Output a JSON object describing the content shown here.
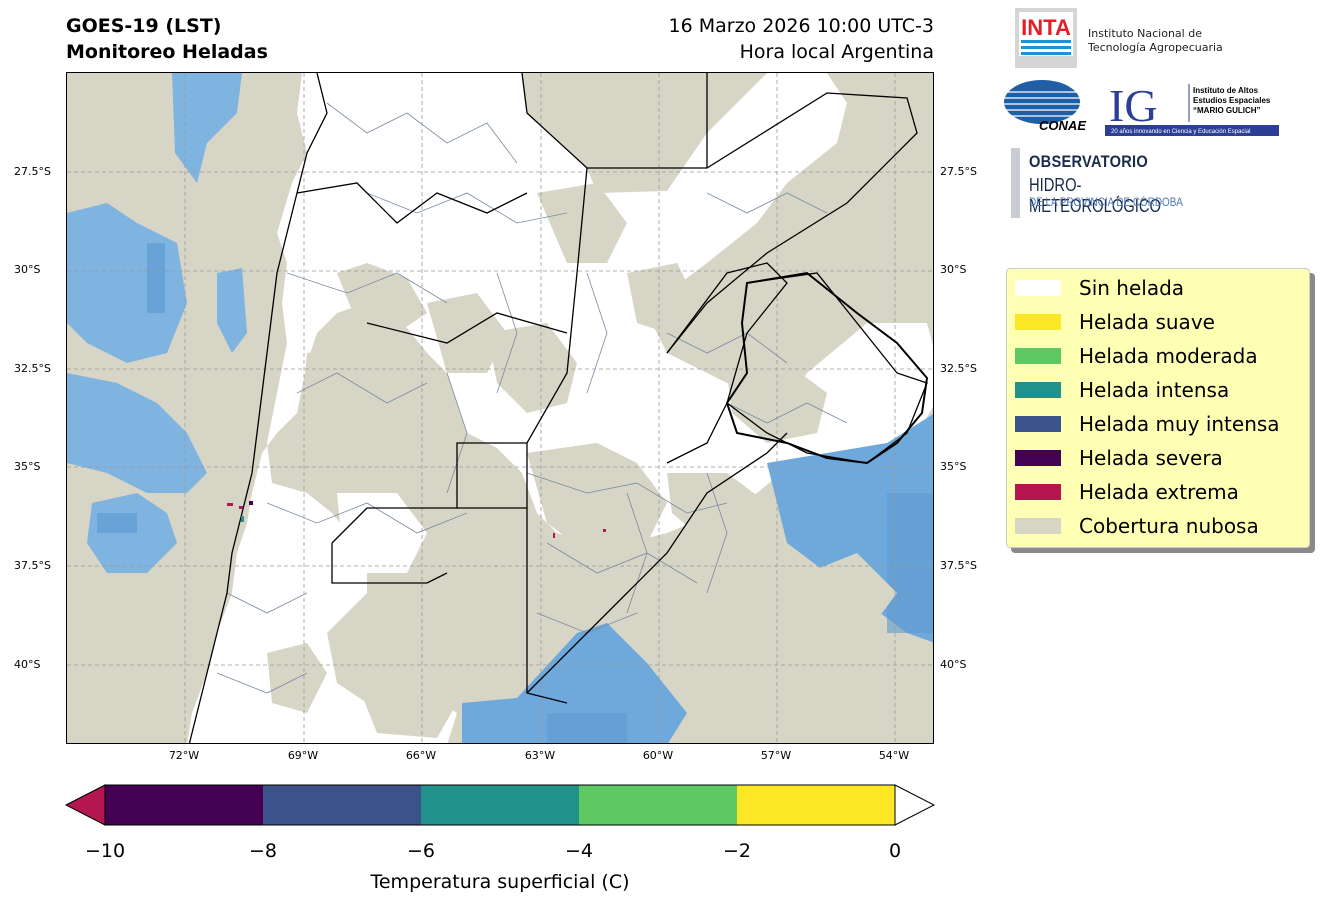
{
  "header": {
    "title_line1": "GOES-19 (LST)",
    "title_line2": "Monitoreo Heladas",
    "date_line": "16 Marzo 2026 10:00 UTC-3",
    "local_time_line": "Hora local Argentina"
  },
  "map": {
    "lat_labels": [
      "27.5°S",
      "30°S",
      "32.5°S",
      "35°S",
      "37.5°S",
      "40°S"
    ],
    "lon_labels": [
      "72°W",
      "69°W",
      "66°W",
      "63°W",
      "60°W",
      "57°W",
      "54°W"
    ],
    "colors": {
      "cloud": "#d6d5c6",
      "land_clear": "#ffffff",
      "water_sea": "#6fa8da",
      "boundary": "#000000",
      "department_lines": "#7a8ba0",
      "grid": "#9a9a9a"
    }
  },
  "legend": {
    "items": [
      {
        "label": "Sin helada",
        "color": "#ffffff"
      },
      {
        "label": "Helada suave",
        "color": "#fde725"
      },
      {
        "label": "Helada moderada",
        "color": "#5ec962"
      },
      {
        "label": "Helada intensa",
        "color": "#21918c"
      },
      {
        "label": "Helada muy intensa",
        "color": "#3b528b"
      },
      {
        "label": "Helada severa",
        "color": "#440154"
      },
      {
        "label": "Helada extrema",
        "color": "#b5164f"
      },
      {
        "label": "Cobertura nubosa",
        "color": "#d6d5c6"
      }
    ]
  },
  "colorbar": {
    "ticks": [
      "−10",
      "−8",
      "−6",
      "−4",
      "−2",
      "0"
    ],
    "label": "Temperatura superficial (C)",
    "segments": [
      "#440154",
      "#3b528b",
      "#21918c",
      "#5ec962",
      "#fde725"
    ],
    "under_color": "#b5164f",
    "over_color": "#ffffff"
  },
  "logos": {
    "inta_text": "INTA",
    "inta_line1": "Instituto Nacional de",
    "inta_line2": "Tecnología Agropecuaria",
    "conae_text": "CONAE",
    "ig_text": "IG",
    "ig_line1": "Instituto de Altos",
    "ig_line2": "Estudios Espaciales",
    "ig_line3": "“MARIO GULICH”",
    "ig_tagline": "20 años innovando en Ciencia y Educación Espacial",
    "obs_line1": "OBSERVATORIO",
    "obs_line2": "HIDRO-METEOROLÓGICO",
    "obs_line3": "DE LA PROVINCIA DE CÓRDOBA"
  }
}
